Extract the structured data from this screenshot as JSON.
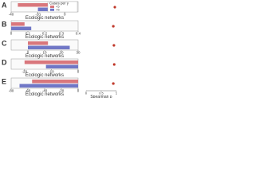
{
  "chart_data": [
    {
      "type": "bar",
      "label": "A",
      "xlabel": "Ecologic networks",
      "legend_title": "Cases per y",
      "series": [
        {
          "name": "<5",
          "color": "#d9777c",
          "values": [
            -35
          ]
        },
        {
          "name": ">5",
          "color": "#7077c6",
          "values": [
            -20
          ]
        }
      ],
      "xlim": [
        -40,
        10
      ],
      "xticks": [
        -40,
        -20,
        0
      ]
    },
    {
      "type": "bar",
      "label": "B",
      "xlabel": "Ecologic networks",
      "series": [
        {
          "color": "#d9777c",
          "values": [
            0.08
          ]
        },
        {
          "color": "#7077c6",
          "values": [
            0.12
          ]
        }
      ],
      "xlim": [
        0,
        0.4
      ],
      "xticks": [
        0,
        0.1,
        0.2,
        0.3,
        0.4
      ]
    },
    {
      "type": "bar",
      "label": "C",
      "xlabel": "Ecologic networks",
      "series": [
        {
          "color": "#d9777c",
          "values": [
            12
          ]
        },
        {
          "color": "#7077c6",
          "values": [
            25
          ]
        }
      ],
      "xlim": [
        -10,
        30
      ],
      "xticks": [
        0,
        10,
        20,
        30
      ]
    },
    {
      "type": "bar",
      "label": "D",
      "xlabel": "Ecologic networks",
      "series": [
        {
          "color": "#d9777c",
          "values": [
            -20
          ]
        },
        {
          "color": "#7077c6",
          "values": [
            -12
          ]
        }
      ],
      "xlim": [
        -25,
        0
      ],
      "xticks": [
        -20,
        -10,
        0
      ]
    },
    {
      "type": "bar",
      "label": "E",
      "xlabel": "Ecologic networks",
      "series": [
        {
          "color": "#d9777c",
          "values": [
            -55
          ]
        },
        {
          "color": "#7077c6",
          "values": [
            -70
          ]
        }
      ],
      "xlim": [
        -80,
        0
      ],
      "xticks": [
        -80,
        -60,
        -40,
        -20,
        0
      ]
    },
    {
      "type": "dot",
      "xlabel": "Spearman ρ",
      "color": "#c0392b",
      "values": [
        0.95,
        0.9,
        0.92,
        0.93,
        0.9
      ],
      "xlim": [
        0,
        1
      ],
      "xticks": [
        0,
        0.5,
        1
      ]
    }
  ]
}
